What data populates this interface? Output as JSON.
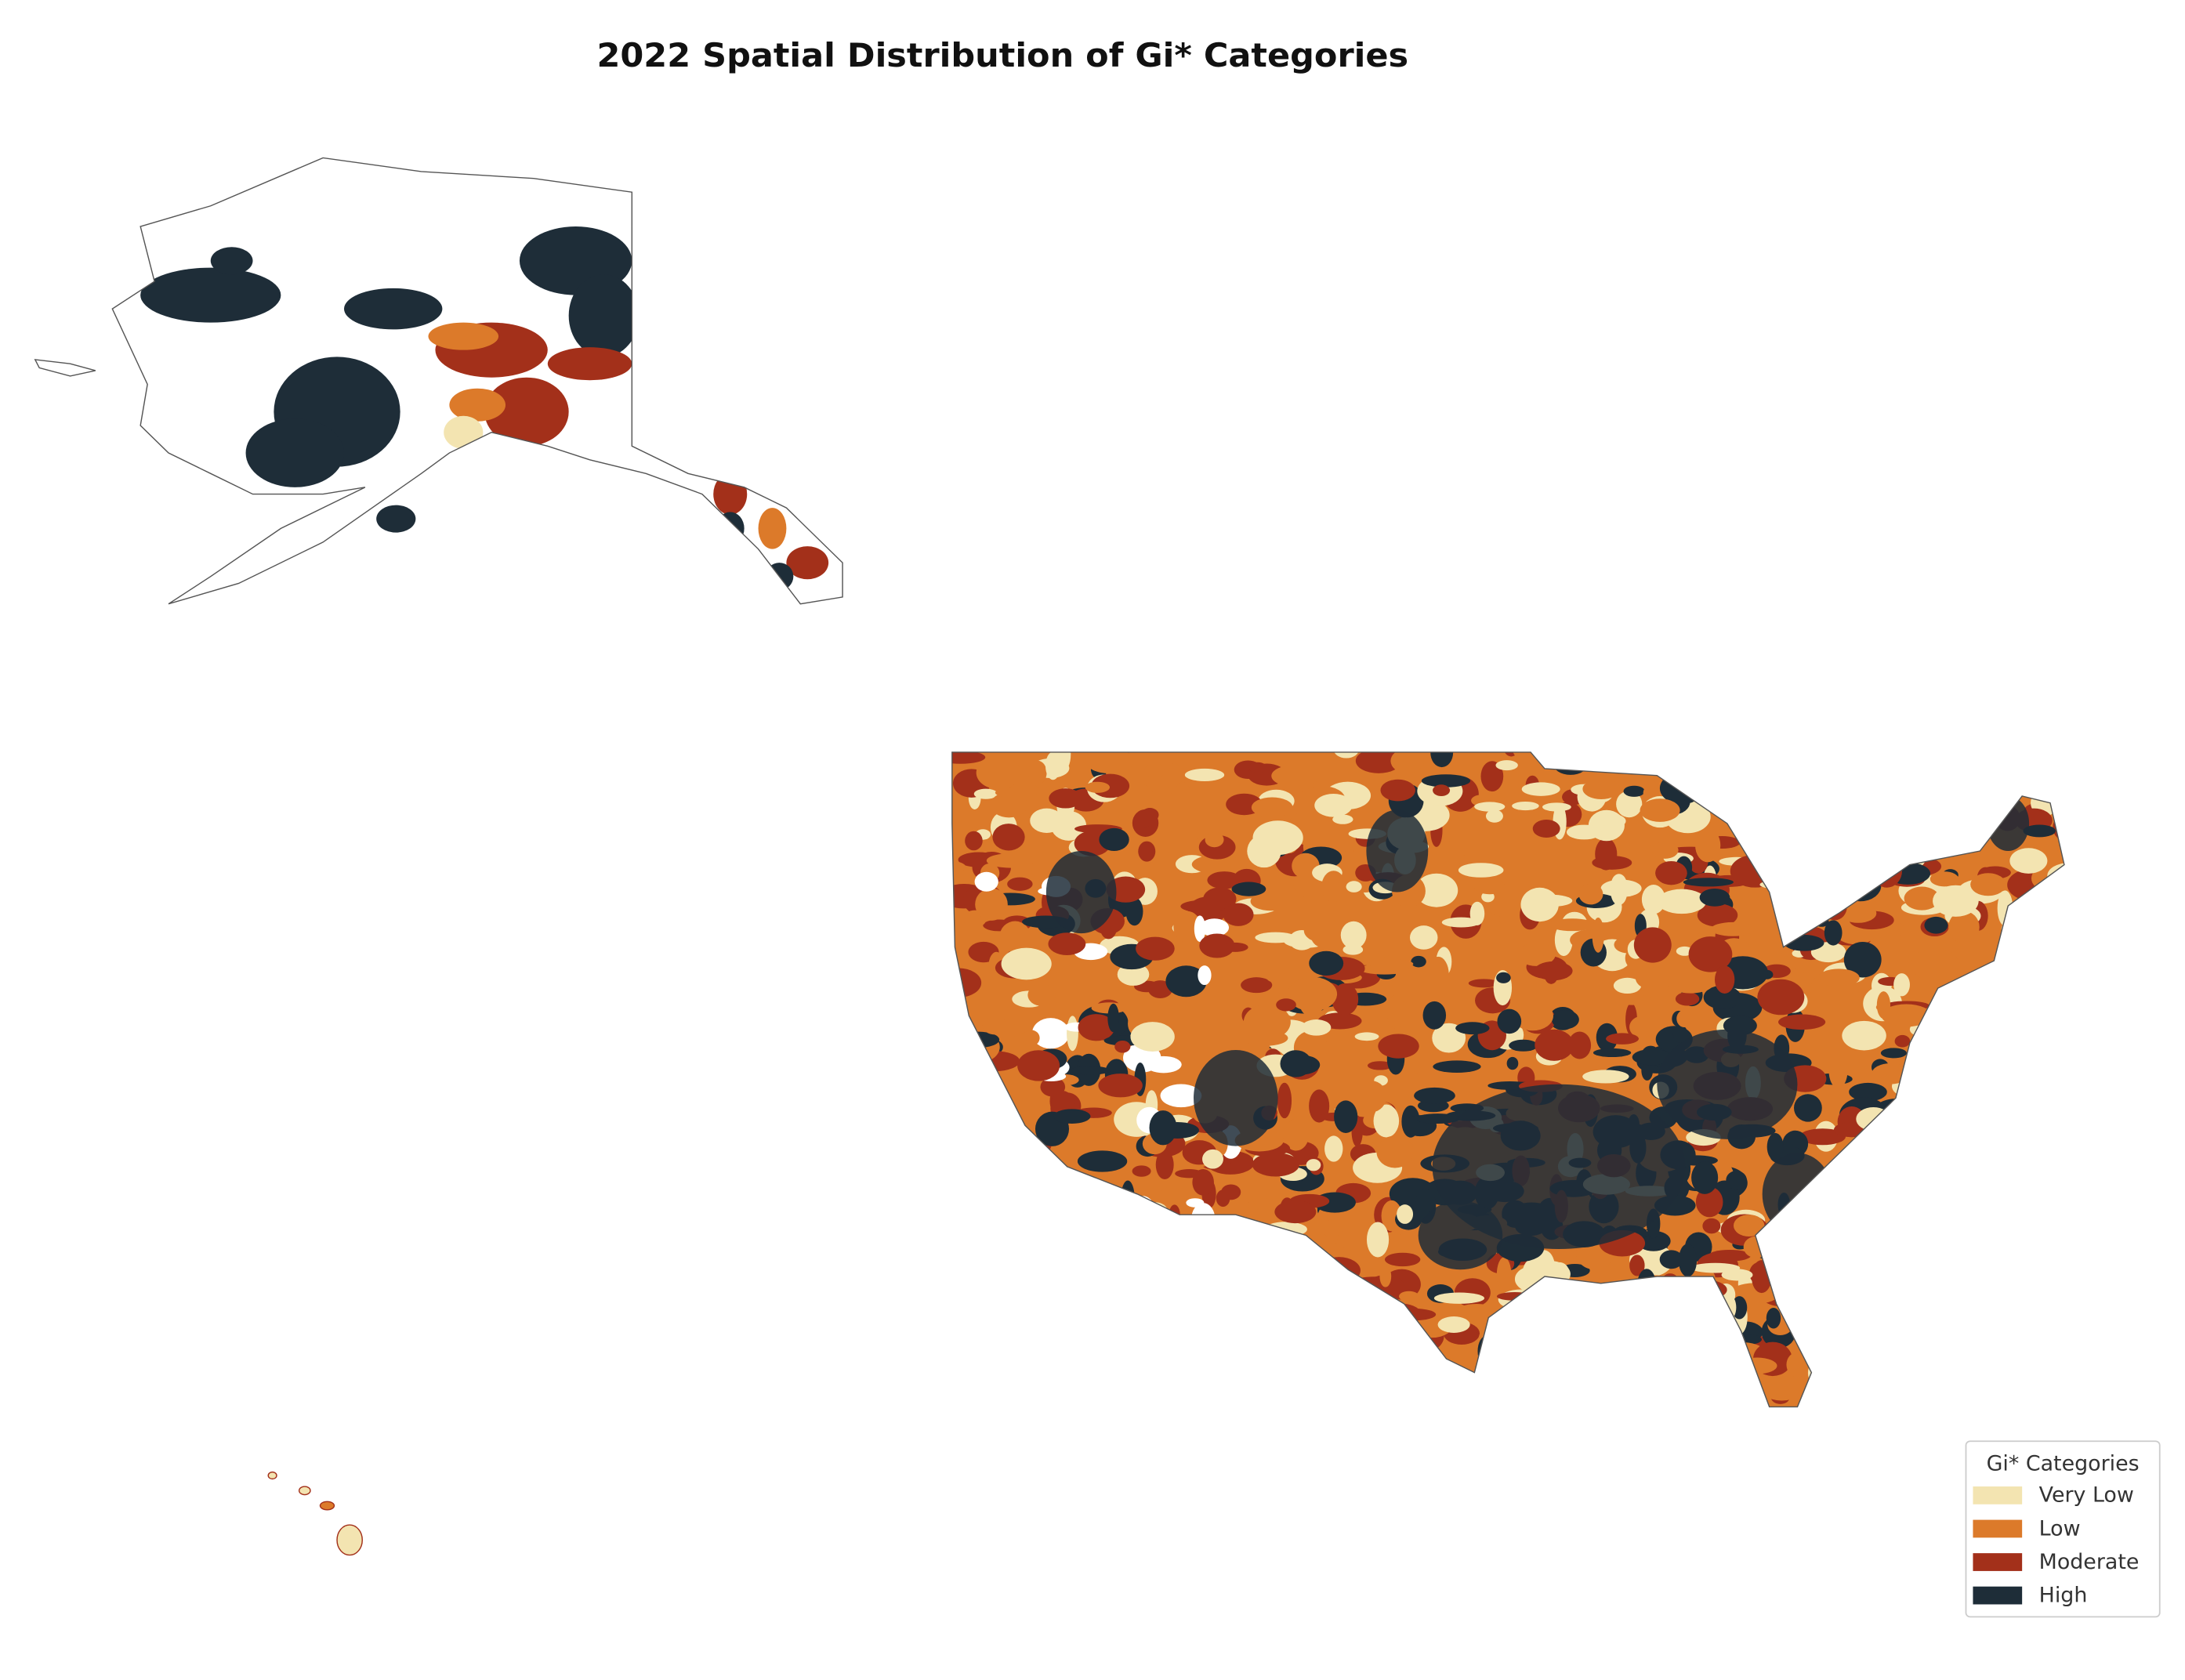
{
  "title": "2022 Spatial Distribution of Gi* Categories",
  "legend": {
    "title": "Gi* Categories",
    "items": [
      {
        "label": "Very Low",
        "color": "#f3e4b1"
      },
      {
        "label": "Low",
        "color": "#dc7a2a"
      },
      {
        "label": "Moderate",
        "color": "#a3301a"
      },
      {
        "label": "High",
        "color": "#1e2d38"
      }
    ]
  }
}
